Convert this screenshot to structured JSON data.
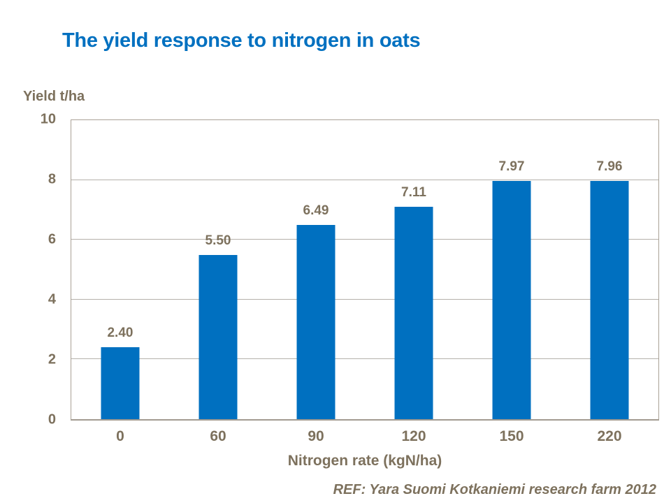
{
  "chart_data": {
    "type": "bar",
    "title": "The yield response to nitrogen in oats",
    "y_axis_title": "Yield t/ha",
    "x_axis_title": "Nitrogen rate (kgN/ha)",
    "categories": [
      "0",
      "60",
      "90",
      "120",
      "150",
      "220"
    ],
    "values": [
      2.4,
      5.5,
      6.49,
      7.11,
      7.97,
      7.96
    ],
    "value_labels": [
      "2.40",
      "5.50",
      "6.49",
      "7.11",
      "7.97",
      "7.96"
    ],
    "y_ticks": [
      0,
      2,
      4,
      6,
      8,
      10
    ],
    "ylim": [
      0,
      10
    ],
    "grid": "horizontal",
    "gridline_ticks": [
      2,
      4,
      6,
      8
    ],
    "legend_position": "none"
  },
  "footer": {
    "ref_text": "REF: Yara Suomi Kotkaniemi research farm 2012"
  },
  "colors": {
    "background": "#ffffff",
    "title_blue": "#0070c0",
    "bar_blue": "#0070c0",
    "text_brown": "#7d715d",
    "gridline": "#b5b1aa",
    "plot_border": "#a9a196",
    "axis_line": "#a29a90"
  }
}
